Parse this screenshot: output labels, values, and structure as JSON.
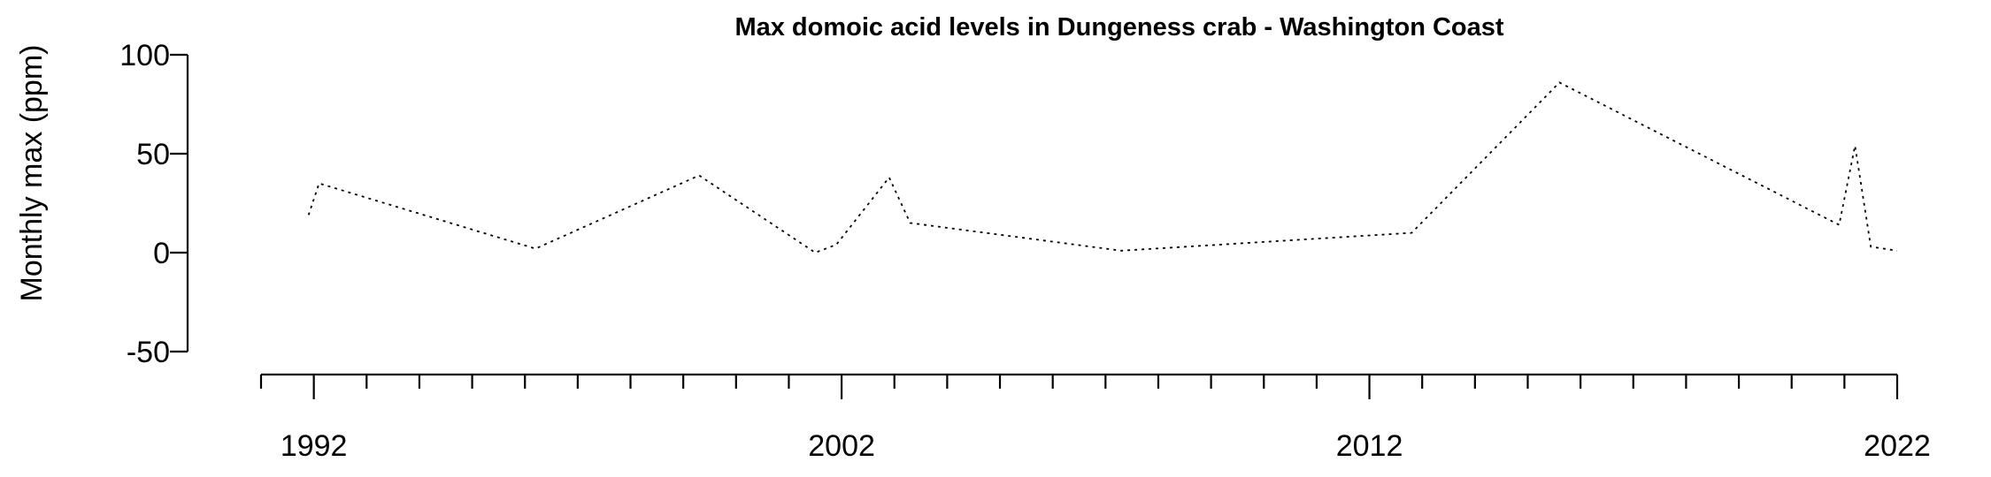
{
  "chart_data": {
    "type": "line",
    "title": "Max domoic acid levels in Dungeness crab - Washington Coast",
    "xlabel": "",
    "ylabel": "Monthly max (ppm)",
    "xlim": [
      1991,
      2022
    ],
    "ylim": [
      -50,
      100
    ],
    "x_major_ticks": [
      1992,
      2002,
      2012,
      2022
    ],
    "x_tick_labels": [
      "1992",
      "2002",
      "2012",
      "2022"
    ],
    "x_minor_step": 1,
    "y_ticks": [
      -50,
      0,
      50,
      100
    ],
    "y_tick_labels": [
      "-50",
      "0",
      "50",
      "100"
    ],
    "grid": false,
    "legend": "none",
    "line_style": "dotted",
    "line_color": "#000000",
    "series": [
      {
        "x": [
          1991.9,
          1992.1,
          1996.2,
          1999.3,
          2001.5,
          2001.9,
          2002.9,
          2003.3,
          2007.3,
          2012.8,
          2015.6,
          2020.9,
          2021.2,
          2021.5,
          2022.0
        ],
        "y": [
          19,
          35,
          2,
          39,
          0,
          4,
          38,
          15,
          1,
          10,
          86,
          14,
          54,
          3,
          1
        ]
      }
    ]
  }
}
